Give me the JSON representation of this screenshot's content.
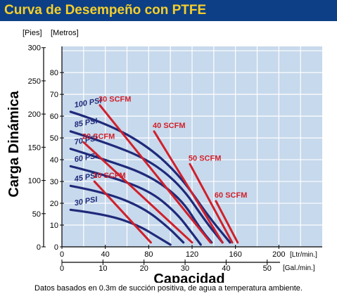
{
  "header": {
    "title": "Curva de Desempeño con PTFE"
  },
  "footnote": "Datos basados en 0.3m de succión positiva, de agua a temperatura ambiente.",
  "colors": {
    "header_bg": "#0d3f86",
    "title": "#f5cf2a",
    "plot_bg": "#c7d9ec",
    "psi_curve": "#1f2a7a",
    "scfm_line": "#d0202b",
    "outer_bg": "#ffffff"
  },
  "chart_data": {
    "type": "line",
    "ylabel": "Carga Dinámica",
    "xlabel": "Capacidad",
    "units": {
      "y_left": "[Pies]",
      "y_right": "[Metros]",
      "x_top": "[Ltr/min.]",
      "x_bottom": "[Gal./min.]"
    },
    "y_feet_ticks": [
      "300",
      "250",
      "200",
      "150",
      "100",
      "50",
      "0"
    ],
    "y_feet_values": [
      300,
      250,
      200,
      150,
      100,
      50,
      0
    ],
    "y_meter_ticks": [
      "80",
      "70",
      "60",
      "50",
      "40",
      "30",
      "20",
      "10",
      "0"
    ],
    "y_meter_values": [
      80,
      70,
      60,
      50,
      40,
      30,
      20,
      10,
      0
    ],
    "x_lpm_ticks": [
      "0",
      "40",
      "80",
      "120",
      "160",
      "200"
    ],
    "x_lpm_values": [
      0,
      40,
      80,
      120,
      160,
      200
    ],
    "x_gpm_ticks": [
      "0",
      "10",
      "20",
      "30",
      "40",
      "50"
    ],
    "x_gpm_values": [
      0,
      10,
      20,
      30,
      40,
      50
    ],
    "xlim_lpm": [
      0,
      240
    ],
    "ylim_meters": [
      0,
      92
    ],
    "grid": true,
    "psi_curves": [
      {
        "name": "100 PSI",
        "points": [
          [
            8,
            62
          ],
          [
            40,
            57
          ],
          [
            80,
            46
          ],
          [
            110,
            32
          ],
          [
            135,
            14
          ],
          [
            155,
            2
          ]
        ]
      },
      {
        "name": "85 PSI",
        "points": [
          [
            8,
            53
          ],
          [
            40,
            48
          ],
          [
            80,
            40
          ],
          [
            110,
            28
          ],
          [
            132,
            12
          ],
          [
            148,
            2
          ]
        ]
      },
      {
        "name": "70 PSI",
        "points": [
          [
            8,
            45
          ],
          [
            40,
            40
          ],
          [
            80,
            33
          ],
          [
            110,
            22
          ],
          [
            128,
            8
          ],
          [
            138,
            2
          ]
        ]
      },
      {
        "name": "60 PSI",
        "points": [
          [
            8,
            37
          ],
          [
            40,
            33
          ],
          [
            80,
            26
          ],
          [
            105,
            16
          ],
          [
            122,
            5
          ],
          [
            128,
            1
          ]
        ]
      },
      {
        "name": "45 PSI",
        "points": [
          [
            8,
            28
          ],
          [
            40,
            25
          ],
          [
            75,
            18
          ],
          [
            98,
            9
          ],
          [
            112,
            2
          ]
        ]
      },
      {
        "name": "30 PSI",
        "points": [
          [
            8,
            17
          ],
          [
            40,
            15
          ],
          [
            70,
            10
          ],
          [
            90,
            4
          ],
          [
            100,
            1
          ]
        ]
      }
    ],
    "scfm_lines": [
      {
        "name": "10 SCFM",
        "points": [
          [
            30,
            30
          ],
          [
            82,
            2
          ]
        ]
      },
      {
        "name": "20 SCFM",
        "points": [
          [
            20,
            48
          ],
          [
            120,
            2
          ]
        ]
      },
      {
        "name": "30 SCFM",
        "points": [
          [
            35,
            65
          ],
          [
            137,
            2
          ]
        ]
      },
      {
        "name": "40 SCFM",
        "points": [
          [
            85,
            53
          ],
          [
            148,
            2
          ]
        ]
      },
      {
        "name": "50 SCFM",
        "points": [
          [
            118,
            38
          ],
          [
            157,
            2
          ]
        ]
      },
      {
        "name": "60 SCFM",
        "points": [
          [
            142,
            21
          ],
          [
            162,
            2
          ]
        ]
      }
    ]
  }
}
